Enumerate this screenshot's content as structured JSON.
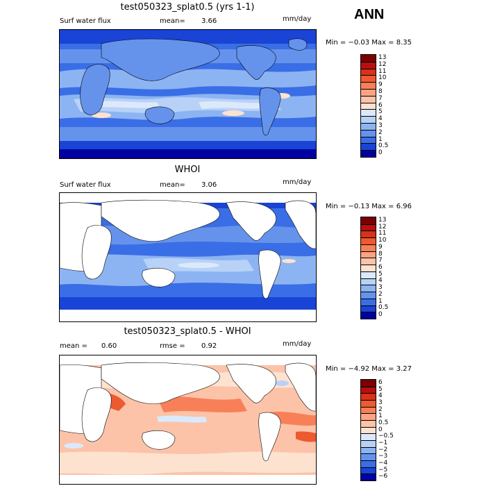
{
  "season": "ANN",
  "panels": [
    {
      "title": "test050323_splat0.5 (yrs 1-1)",
      "left_label": "Surf water flux",
      "stat_label": "mean=",
      "stat_value": "3.66",
      "units": "mm/day",
      "minmax": "Min =  −0.03 Max =   8.35",
      "colorbar_labels": [
        "13",
        "12",
        "11",
        "10",
        "9",
        "8",
        "7",
        "6",
        "5",
        "4",
        "3",
        "2",
        "1",
        "0.5",
        "0"
      ],
      "colors": [
        "#7b0000",
        "#b81010",
        "#d8321a",
        "#ee5a30",
        "#f88058",
        "#fca384",
        "#fcc3a8",
        "#fde2d0",
        "#dce9fb",
        "#b8d2f7",
        "#8db4f2",
        "#6593ec",
        "#3a6ee6",
        "#1a44d6",
        "#0000a0"
      ],
      "land_white": false
    },
    {
      "title": "WHOI",
      "left_label": "Surf water flux",
      "stat_label": "mean=",
      "stat_value": "3.06",
      "units": "mm/day",
      "minmax": "Min =  −0.13 Max =   6.96",
      "colorbar_labels": [
        "13",
        "12",
        "11",
        "10",
        "9",
        "8",
        "7",
        "6",
        "5",
        "4",
        "3",
        "2",
        "1",
        "0.5",
        "0"
      ],
      "colors": [
        "#7b0000",
        "#b81010",
        "#d8321a",
        "#ee5a30",
        "#f88058",
        "#fca384",
        "#fcc3a8",
        "#fde2d0",
        "#dce9fb",
        "#b8d2f7",
        "#8db4f2",
        "#6593ec",
        "#3a6ee6",
        "#1a44d6",
        "#0000a0"
      ],
      "land_white": true
    },
    {
      "title": "test050323_splat0.5 - WHOI",
      "left_label": "mean =",
      "left_value": "0.60",
      "stat_label": "rmse =",
      "stat_value": "0.92",
      "units": "mm/day",
      "minmax": "Min =  −4.92 Max =   3.27",
      "colorbar_labels": [
        "6",
        "5",
        "4",
        "3",
        "2",
        "1",
        "0.5",
        "0",
        "−0.5",
        "−1",
        "−2",
        "−3",
        "−4",
        "−5",
        "−6"
      ],
      "colors": [
        "#7b0000",
        "#b81010",
        "#d8321a",
        "#ee5a30",
        "#f88058",
        "#fca384",
        "#fcc3a8",
        "#fde2d0",
        "#dce9fb",
        "#b8d2f7",
        "#8db4f2",
        "#6593ec",
        "#3a6ee6",
        "#1a44d6",
        "#0000a0"
      ],
      "land_white": true
    }
  ]
}
